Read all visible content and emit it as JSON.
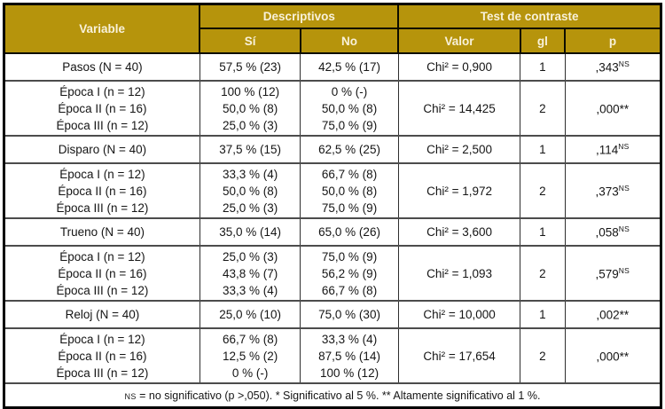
{
  "colors": {
    "header_bg": "#b6940c",
    "header_text": "#f8f1da",
    "body_text": "#151515",
    "outer_border": "#000000",
    "row_divider": "#4c4c4c"
  },
  "header": {
    "variable": "Variable",
    "descriptivos": "Descriptivos",
    "test_de_contraste": "Test de contraste",
    "si": "Sí",
    "no": "No",
    "valor": "Valor",
    "gl": "gl",
    "p": "p"
  },
  "rows": [
    {
      "variable": "Pasos (N = 40)",
      "si": "57,5 % (23)",
      "no": "42,5 % (17)",
      "valor": "Chi² = 0,900",
      "gl": "1",
      "p_base": ",343",
      "p_sup": "NS"
    },
    {
      "variable": [
        "Época I (n = 12)",
        "Época II (n = 16)",
        "Época III (n = 12)"
      ],
      "si": [
        "100 % (12)",
        "50,0 % (8)",
        "25,0 % (3)"
      ],
      "no": [
        "0 % (-)",
        "50,0 % (8)",
        "75,0 % (9)"
      ],
      "valor": "Chi² = 14,425",
      "gl": "2",
      "p_base": ",000**",
      "p_sup": ""
    },
    {
      "variable": "Disparo (N = 40)",
      "si": "37,5 % (15)",
      "no": "62,5 % (25)",
      "valor": "Chi² = 2,500",
      "gl": "1",
      "p_base": ",114",
      "p_sup": "NS"
    },
    {
      "variable": [
        "Época I (n = 12)",
        "Época II (n = 16)",
        "Época III (n = 12)"
      ],
      "si": [
        "33,3 % (4)",
        "50,0 % (8)",
        "25,0 % (3)"
      ],
      "no": [
        "66,7 % (8)",
        "50,0 % (8)",
        "75,0 % (9)"
      ],
      "valor": "Chi² = 1,972",
      "gl": "2",
      "p_base": ",373",
      "p_sup": "NS"
    },
    {
      "variable": "Trueno (N = 40)",
      "si": "35,0 % (14)",
      "no": "65,0 % (26)",
      "valor": "Chi² = 3,600",
      "gl": "1",
      "p_base": ",058",
      "p_sup": "NS"
    },
    {
      "variable": [
        "Época I (n = 12)",
        "Época II (n = 16)",
        "Época III (n = 12)"
      ],
      "si": [
        "25,0 % (3)",
        "43,8 % (7)",
        "33,3 % (4)"
      ],
      "no": [
        "75,0 % (9)",
        "56,2 % (9)",
        "66,7 % (8)"
      ],
      "valor": "Chi² = 1,093",
      "gl": "2",
      "p_base": ",579",
      "p_sup": "NS"
    },
    {
      "variable": "Reloj (N = 40)",
      "si": "25,0 % (10)",
      "no": "75,0 % (30)",
      "valor": "Chi² = 10,000",
      "gl": "1",
      "p_base": ",002**",
      "p_sup": ""
    },
    {
      "variable": [
        "Época I (n = 12)",
        "Época II (n = 16)",
        "Época III (n = 12)"
      ],
      "si": [
        "66,7 % (8)",
        "12,5 % (2)",
        "0 % (-)"
      ],
      "no": [
        "33,3 % (4)",
        "87,5 % (14)",
        "100 % (12)"
      ],
      "valor": "Chi² = 17,654",
      "gl": "2",
      "p_base": ",000**",
      "p_sup": ""
    }
  ],
  "footer": {
    "marker": "NS",
    "text": " = no significativo (p >,050). * Significativo al 5 %. ** Altamente significativo al 1 %."
  }
}
